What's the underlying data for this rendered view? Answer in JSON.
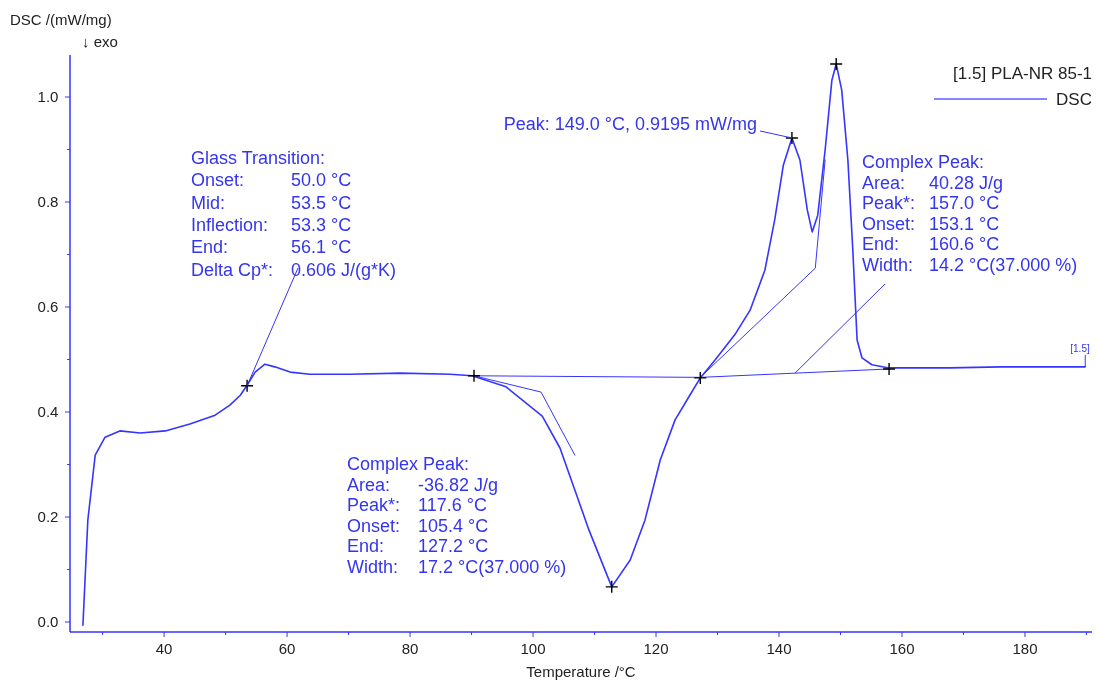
{
  "chart_data": {
    "type": "line",
    "xlabel": "Temperature /°C",
    "ylabel": "DSC /(mW/mg)\n↓ exo",
    "legend_title": "[1.5] PLA-NR 85-1",
    "legend": "top right",
    "grid": false,
    "marker": "none",
    "line_style": "solid",
    "xlim": [
      24.7,
      190.9
    ],
    "ylim": [
      -0.019,
      1.08
    ],
    "xticks": [
      {
        "value": 30,
        "label": null
      },
      40,
      {
        "value": 50,
        "label": null
      },
      60,
      {
        "value": 70,
        "label": null
      },
      80,
      {
        "value": 90,
        "label": null
      },
      100,
      {
        "value": 110,
        "label": null
      },
      120,
      {
        "value": 130,
        "label": null
      },
      140,
      {
        "value": 150,
        "label": null
      },
      160,
      {
        "value": 170,
        "label": null
      },
      180,
      {
        "value": 190,
        "label": null
      }
    ],
    "yticks": [
      {
        "value": 0,
        "label": "0.0"
      },
      {
        "value": 0.1,
        "label": null
      },
      0.2,
      {
        "value": 0.3,
        "label": null
      },
      0.4,
      {
        "value": 0.5,
        "label": null
      },
      0.6,
      {
        "value": 0.7,
        "label": null
      },
      0.8,
      {
        "value": 0.9,
        "label": null
      },
      {
        "value": 1.0,
        "label": "1.0"
      }
    ],
    "series": [
      {
        "name": "DSC",
        "color": "#3535ff",
        "x": [
          26.8,
          27.6,
          28.8,
          30.4,
          32.8,
          36.1,
          40.2,
          44.2,
          48.3,
          50.7,
          52.4,
          53.5,
          54.8,
          56.4,
          58.0,
          60.5,
          63.7,
          70.2,
          78.4,
          86.5,
          90.1,
          95.6,
          101.5,
          104.4,
          109.1,
          112.8,
          115.8,
          118.2,
          120.7,
          123.1,
          125.5,
          127.2,
          129.6,
          132.8,
          135.3,
          137.7,
          139.3,
          140.7,
          142.1,
          143.4,
          144.6,
          145.4,
          146.3,
          147.5,
          148.6,
          149.3,
          150.2,
          151.2,
          152.0,
          152.7,
          153.5,
          155.1,
          157.9,
          159.7,
          167.8,
          176.0,
          184.1,
          189.8
        ],
        "values": [
          -0.006,
          0.194,
          0.318,
          0.352,
          0.364,
          0.36,
          0.364,
          0.377,
          0.394,
          0.413,
          0.432,
          0.451,
          0.476,
          0.491,
          0.486,
          0.476,
          0.472,
          0.472,
          0.474,
          0.472,
          0.469,
          0.448,
          0.392,
          0.331,
          0.175,
          0.067,
          0.118,
          0.194,
          0.309,
          0.385,
          0.432,
          0.465,
          0.499,
          0.547,
          0.594,
          0.67,
          0.766,
          0.87,
          0.922,
          0.88,
          0.785,
          0.743,
          0.775,
          0.899,
          1.032,
          1.063,
          1.013,
          0.88,
          0.709,
          0.537,
          0.503,
          0.49,
          0.484,
          0.484,
          0.484,
          0.486,
          0.486,
          0.486
        ]
      },
      {
        "type": "line",
        "color": "#3535ff",
        "x": [
          90.4,
          127.2,
          157.9
        ],
        "values": [
          0.469,
          0.466,
          0.482
        ]
      },
      {
        "type": "line",
        "color": "#3535ff",
        "x": [
          127.2,
          145.9,
          147.5
        ],
        "values": [
          0.466,
          0.674,
          0.88
        ]
      },
      {
        "type": "line",
        "color": "#3535ff",
        "x": [
          90.4,
          101.3,
          106.8
        ],
        "values": [
          0.469,
          0.438,
          0.318
        ]
      },
      {
        "type": "scatter",
        "marker": "cross",
        "color": "#000000",
        "x": [
          53.5,
          90.4,
          112.8,
          127.2,
          142.1,
          149.3,
          157.9
        ],
        "values": [
          0.45,
          0.469,
          0.067,
          0.465,
          0.922,
          1.063,
          0.482
        ]
      }
    ],
    "annotations": [
      "Glass Transition:",
      "Onset: 50.0 °C",
      "Mid: 53.5 °C",
      "Inflection: 53.3 °C",
      "End: 56.1 °C",
      {
        "text": "Delta Cp*: 0.606 J/(g*K)",
        "x": 53.5,
        "y": 0.45
      },
      {
        "text": "Peak: 149.0 °C, 0.9195 mW/mg",
        "x": 142.1,
        "y": 0.922
      },
      "Complex Peak:",
      "Area: 40.28 J/g",
      "Peak*: 157.0 °C",
      "Onset: 153.1 °C",
      "End: 160.6 °C",
      {
        "text": "Width: 14.2 °C(37.000 %)",
        "x": 142.6,
        "y": 0.474
      },
      "Complex Peak:",
      "Area: -36.82 J/g",
      "Peak*: 117.6 °C",
      "Onset: 105.4 °C",
      "End: 127.2 °C",
      "Width: 17.2 °C(37.000 %)",
      {
        "text": "[1.5]",
        "x": 189.8,
        "y": 0.486
      }
    ]
  }
}
